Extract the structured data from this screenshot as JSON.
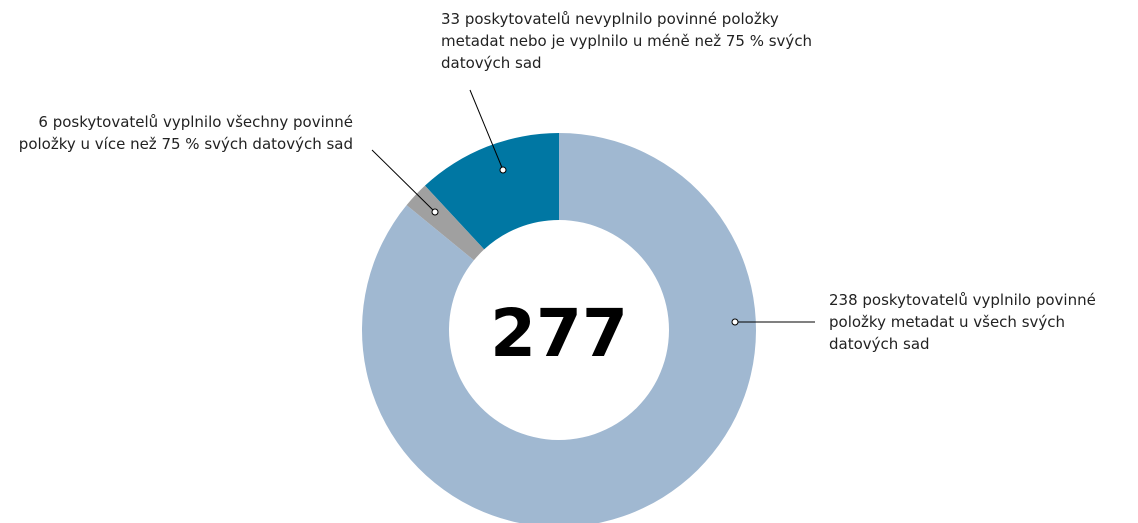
{
  "chart_data": {
    "type": "donut",
    "categories": [
      "238 poskytovatelů vyplnilo povinné položky metadat u všech svých datových sad",
      "6 poskytovatelů vyplnilo všechny povinné položky u více než 75 % svých datových sad",
      "33 poskytovatelů nevyplnilo povinné položky metadat nebo je vyplnilo u méně než 75 % svých datových sad"
    ],
    "values": [
      238,
      6,
      33
    ],
    "colors": [
      "#a0b8d1",
      "#a0a0a0",
      "#0077a3"
    ],
    "total": 277
  }
}
